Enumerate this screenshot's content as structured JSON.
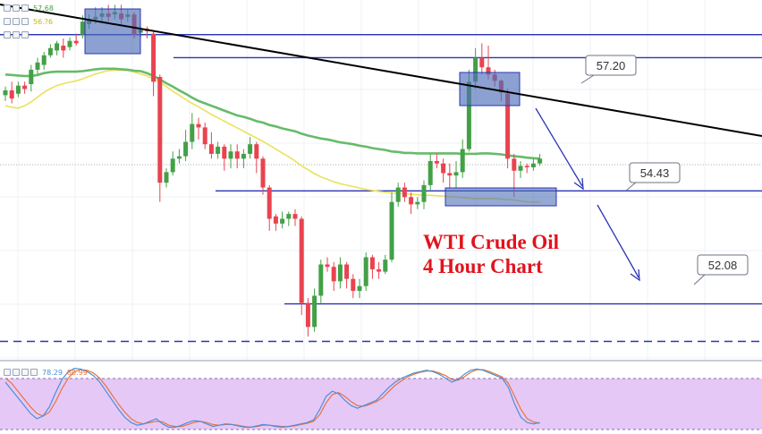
{
  "legend": {
    "row1": {
      "values": [
        "57.68"
      ],
      "colors": [
        "#43a047"
      ]
    },
    "row2": {
      "values": [
        "56.?6"
      ],
      "colors": [
        "#d4c400"
      ]
    },
    "stoch": {
      "values": [
        "78.29",
        "80.99"
      ],
      "colors": [
        "#4a90d9",
        "#e8743b"
      ]
    }
  },
  "annotation": {
    "line1": "WTI Crude Oil",
    "line2": "4 Hour Chart"
  },
  "colors": {
    "up": "#43a047",
    "down": "#e9434f",
    "level": "#2b34b5",
    "trend": "#000000",
    "ma_slow": "#66bb6a",
    "ma_fast": "#eae25a",
    "box_fill": "#4e6fb8",
    "stoch_bg": "#e6c8f7",
    "k_line": "#4a90d9",
    "d_line": "#e8743b"
  },
  "chart_data": {
    "type": "candlestick",
    "price_range": [
      50.9,
      58.4
    ],
    "levels": [
      {
        "value": 57.2,
        "label": "57.20",
        "style": "solid"
      },
      {
        "value": 54.43,
        "label": "54.43",
        "style": "solid"
      },
      {
        "value": 52.08,
        "label": "52.08",
        "style": "solid"
      },
      {
        "value": 57.68,
        "label": "",
        "style": "solid"
      },
      {
        "value": 51.3,
        "label": "",
        "style": "dashed"
      }
    ],
    "candles": [
      [
        56.42,
        56.52,
        56.6,
        56.3
      ],
      [
        56.52,
        56.35,
        56.7,
        56.25
      ],
      [
        56.45,
        56.62,
        56.7,
        56.38
      ],
      [
        56.62,
        56.55,
        56.7,
        56.45
      ],
      [
        56.65,
        56.95,
        57.05,
        56.5
      ],
      [
        56.95,
        57.1,
        57.2,
        56.85
      ],
      [
        57.05,
        57.25,
        57.32,
        56.95
      ],
      [
        57.25,
        57.4,
        57.48,
        57.2
      ],
      [
        57.35,
        57.5,
        57.55,
        57.25
      ],
      [
        57.45,
        57.35,
        57.6,
        57.2
      ],
      [
        57.42,
        57.55,
        57.62,
        57.35
      ],
      [
        57.55,
        57.5,
        57.7,
        57.45
      ],
      [
        57.68,
        57.95,
        58.08,
        57.6
      ],
      [
        57.9,
        58.0,
        58.1,
        57.8
      ],
      [
        58.0,
        58.05,
        58.25,
        57.9
      ],
      [
        58.05,
        58.12,
        58.25,
        57.95
      ],
      [
        58.12,
        58.05,
        58.3,
        57.95
      ],
      [
        58.1,
        58.15,
        58.3,
        58.0
      ],
      [
        58.12,
        58.0,
        58.3,
        57.9
      ],
      [
        58.05,
        58.1,
        58.2,
        57.95
      ],
      [
        58.1,
        57.68,
        58.15,
        57.6
      ],
      [
        57.72,
        57.78,
        57.85,
        57.62
      ],
      [
        57.8,
        57.75,
        57.85,
        57.6
      ],
      [
        57.7,
        56.7,
        57.75,
        56.4
      ],
      [
        56.8,
        54.6,
        56.85,
        54.2
      ],
      [
        54.6,
        54.82,
        54.9,
        54.5
      ],
      [
        54.82,
        55.1,
        55.25,
        54.75
      ],
      [
        55.1,
        55.15,
        55.3,
        55.0
      ],
      [
        55.15,
        55.45,
        55.7,
        55.05
      ],
      [
        55.45,
        55.82,
        56.05,
        55.3
      ],
      [
        55.82,
        55.75,
        55.95,
        55.5
      ],
      [
        55.75,
        55.4,
        55.85,
        55.3
      ],
      [
        55.4,
        55.2,
        55.65,
        55.1
      ],
      [
        55.2,
        55.35,
        55.45,
        55.1
      ],
      [
        55.35,
        55.1,
        55.4,
        54.85
      ],
      [
        55.1,
        55.25,
        55.4,
        54.9
      ],
      [
        55.25,
        55.1,
        55.4,
        54.9
      ],
      [
        55.1,
        55.2,
        55.3,
        54.9
      ],
      [
        55.2,
        55.4,
        55.55,
        55.1
      ],
      [
        55.4,
        55.1,
        55.45,
        54.8
      ],
      [
        55.1,
        54.5,
        55.15,
        54.35
      ],
      [
        54.5,
        53.85,
        54.55,
        53.6
      ],
      [
        53.9,
        53.75,
        53.95,
        53.6
      ],
      [
        53.75,
        53.85,
        54.0,
        53.65
      ],
      [
        53.85,
        53.95,
        54.0,
        53.7
      ],
      [
        53.95,
        53.85,
        54.05,
        53.7
      ],
      [
        53.85,
        52.1,
        53.9,
        51.85
      ],
      [
        52.1,
        51.6,
        52.2,
        51.4
      ],
      [
        51.6,
        52.25,
        52.4,
        51.5
      ],
      [
        52.25,
        52.9,
        53.0,
        52.1
      ],
      [
        52.9,
        52.85,
        53.05,
        52.75
      ],
      [
        52.85,
        52.55,
        52.95,
        52.35
      ],
      [
        52.55,
        52.9,
        53.05,
        52.4
      ],
      [
        52.9,
        52.6,
        52.95,
        52.4
      ],
      [
        52.6,
        52.35,
        52.7,
        52.2
      ],
      [
        52.35,
        52.45,
        52.6,
        52.2
      ],
      [
        52.45,
        53.05,
        53.15,
        52.35
      ],
      [
        53.05,
        52.8,
        53.1,
        52.6
      ],
      [
        52.8,
        52.75,
        52.95,
        52.6
      ],
      [
        52.75,
        53.0,
        53.1,
        52.7
      ],
      [
        53.0,
        54.2,
        54.4,
        52.95
      ],
      [
        54.2,
        54.5,
        54.6,
        54.1
      ],
      [
        54.5,
        54.3,
        54.6,
        54.2
      ],
      [
        54.3,
        54.15,
        54.4,
        53.95
      ],
      [
        54.15,
        54.2,
        54.3,
        54.05
      ],
      [
        54.2,
        54.55,
        54.65,
        54.05
      ],
      [
        54.55,
        55.05,
        55.2,
        54.45
      ],
      [
        55.05,
        55.0,
        55.2,
        54.9
      ],
      [
        55.0,
        54.8,
        55.1,
        54.6
      ],
      [
        54.8,
        54.75,
        55.0,
        54.5
      ],
      [
        54.75,
        54.82,
        55.05,
        54.5
      ],
      [
        54.82,
        55.3,
        55.5,
        54.7
      ],
      [
        55.3,
        56.7,
        56.95,
        55.25
      ],
      [
        56.7,
        57.2,
        57.4,
        56.55
      ],
      [
        57.2,
        57.0,
        57.5,
        56.85
      ],
      [
        57.0,
        56.85,
        57.45,
        56.75
      ],
      [
        56.85,
        56.72,
        56.95,
        56.6
      ],
      [
        56.72,
        56.48,
        56.75,
        56.3
      ],
      [
        56.45,
        55.1,
        56.55,
        54.9
      ],
      [
        55.1,
        54.85,
        55.2,
        54.3
      ],
      [
        54.85,
        54.95,
        55.05,
        54.7
      ],
      [
        54.95,
        54.92,
        55.0,
        54.8
      ],
      [
        54.92,
        55.0,
        55.1,
        54.85
      ],
      [
        55.0,
        55.1,
        55.2,
        54.95
      ]
    ],
    "ma_slow": [
      [
        0,
        56.85
      ],
      [
        1,
        56.84
      ],
      [
        2,
        56.83
      ],
      [
        3,
        56.82
      ],
      [
        4,
        56.82
      ],
      [
        5,
        56.84
      ],
      [
        6,
        56.88
      ],
      [
        7,
        56.9
      ],
      [
        8,
        56.91
      ],
      [
        9,
        56.91
      ],
      [
        10,
        56.91
      ],
      [
        11,
        56.91
      ],
      [
        12,
        56.92
      ],
      [
        13,
        56.94
      ],
      [
        14,
        56.96
      ],
      [
        15,
        56.97
      ],
      [
        16,
        56.97
      ],
      [
        17,
        56.97
      ],
      [
        18,
        56.96
      ],
      [
        19,
        56.95
      ],
      [
        20,
        56.93
      ],
      [
        21,
        56.92
      ],
      [
        22,
        56.88
      ],
      [
        23,
        56.82
      ],
      [
        24,
        56.75
      ],
      [
        25,
        56.67
      ],
      [
        26,
        56.6
      ],
      [
        27,
        56.52
      ],
      [
        28,
        56.45
      ],
      [
        29,
        56.37
      ],
      [
        30,
        56.3
      ],
      [
        31,
        56.25
      ],
      [
        32,
        56.2
      ],
      [
        33,
        56.15
      ],
      [
        34,
        56.1
      ],
      [
        35,
        56.05
      ],
      [
        36,
        56.0
      ],
      [
        37,
        55.97
      ],
      [
        38,
        55.93
      ],
      [
        39,
        55.88
      ],
      [
        40,
        55.85
      ],
      [
        41,
        55.8
      ],
      [
        42,
        55.77
      ],
      [
        43,
        55.73
      ],
      [
        44,
        55.7
      ],
      [
        45,
        55.67
      ],
      [
        46,
        55.62
      ],
      [
        47,
        55.58
      ],
      [
        48,
        55.55
      ],
      [
        49,
        55.52
      ],
      [
        50,
        55.5
      ],
      [
        51,
        55.47
      ],
      [
        52,
        55.44
      ],
      [
        53,
        55.42
      ],
      [
        54,
        55.4
      ],
      [
        55,
        55.37
      ],
      [
        56,
        55.35
      ],
      [
        57,
        55.32
      ],
      [
        58,
        55.3
      ],
      [
        59,
        55.28
      ],
      [
        60,
        55.25
      ],
      [
        61,
        55.24
      ],
      [
        62,
        55.22
      ],
      [
        63,
        55.22
      ],
      [
        64,
        55.21
      ],
      [
        65,
        55.21
      ],
      [
        66,
        55.21
      ],
      [
        67,
        55.21
      ],
      [
        68,
        55.21
      ],
      [
        69,
        55.21
      ],
      [
        70,
        55.21
      ],
      [
        71,
        55.2
      ],
      [
        72,
        55.2
      ],
      [
        73,
        55.2
      ],
      [
        74,
        55.21
      ],
      [
        75,
        55.21
      ],
      [
        76,
        55.2
      ],
      [
        77,
        55.19
      ],
      [
        78,
        55.17
      ],
      [
        79,
        55.15
      ],
      [
        80,
        55.14
      ],
      [
        81,
        55.12
      ],
      [
        82,
        55.11
      ],
      [
        83,
        55.1
      ]
    ],
    "ma_fast": [
      [
        0,
        56.2
      ],
      [
        1,
        56.17
      ],
      [
        2,
        56.15
      ],
      [
        3,
        56.2
      ],
      [
        4,
        56.28
      ],
      [
        5,
        56.38
      ],
      [
        6,
        56.48
      ],
      [
        7,
        56.56
      ],
      [
        8,
        56.62
      ],
      [
        9,
        56.66
      ],
      [
        10,
        56.69
      ],
      [
        11,
        56.72
      ],
      [
        12,
        56.76
      ],
      [
        13,
        56.81
      ],
      [
        14,
        56.86
      ],
      [
        15,
        56.9
      ],
      [
        16,
        56.93
      ],
      [
        17,
        56.94
      ],
      [
        18,
        56.94
      ],
      [
        19,
        56.93
      ],
      [
        20,
        56.9
      ],
      [
        21,
        56.86
      ],
      [
        22,
        56.82
      ],
      [
        23,
        56.76
      ],
      [
        24,
        56.69
      ],
      [
        25,
        56.6
      ],
      [
        26,
        56.5
      ],
      [
        27,
        56.42
      ],
      [
        28,
        56.33
      ],
      [
        29,
        56.25
      ],
      [
        30,
        56.18
      ],
      [
        31,
        56.1
      ],
      [
        32,
        56.02
      ],
      [
        33,
        55.95
      ],
      [
        34,
        55.88
      ],
      [
        35,
        55.81
      ],
      [
        36,
        55.74
      ],
      [
        37,
        55.67
      ],
      [
        38,
        55.6
      ],
      [
        39,
        55.53
      ],
      [
        40,
        55.46
      ],
      [
        41,
        55.38
      ],
      [
        42,
        55.3
      ],
      [
        43,
        55.22
      ],
      [
        44,
        55.14
      ],
      [
        45,
        55.05
      ],
      [
        46,
        54.95
      ],
      [
        47,
        54.87
      ],
      [
        48,
        54.79
      ],
      [
        49,
        54.72
      ],
      [
        50,
        54.67
      ],
      [
        51,
        54.62
      ],
      [
        52,
        54.58
      ],
      [
        53,
        54.55
      ],
      [
        54,
        54.52
      ],
      [
        55,
        54.49
      ],
      [
        56,
        54.46
      ],
      [
        57,
        54.44
      ],
      [
        58,
        54.42
      ],
      [
        59,
        54.4
      ],
      [
        60,
        54.39
      ],
      [
        61,
        54.38
      ],
      [
        62,
        54.37
      ],
      [
        63,
        54.36
      ],
      [
        64,
        54.35
      ],
      [
        65,
        54.34
      ],
      [
        66,
        54.34
      ],
      [
        67,
        54.33
      ],
      [
        68,
        54.32
      ],
      [
        69,
        54.31
      ],
      [
        70,
        54.3
      ],
      [
        71,
        54.29
      ],
      [
        72,
        54.28
      ],
      [
        73,
        54.27
      ],
      [
        74,
        54.27
      ],
      [
        75,
        54.27
      ],
      [
        76,
        54.27
      ],
      [
        77,
        54.26
      ],
      [
        78,
        54.25
      ],
      [
        79,
        54.24
      ],
      [
        80,
        54.22
      ],
      [
        81,
        54.2
      ],
      [
        82,
        54.2
      ],
      [
        83,
        54.2
      ]
    ],
    "stochastic": {
      "range": [
        0,
        100
      ],
      "k": [
        74,
        62,
        50,
        38,
        26,
        18,
        22,
        36,
        58,
        78,
        90,
        95,
        94,
        90,
        84,
        74,
        60,
        46,
        32,
        20,
        12,
        8,
        10,
        14,
        18,
        10,
        5,
        5,
        8,
        12,
        15,
        14,
        10,
        6,
        8,
        10,
        9,
        7,
        5,
        5,
        7,
        9,
        8,
        6,
        5,
        6,
        8,
        10,
        12,
        16,
        32,
        52,
        60,
        56,
        46,
        38,
        34,
        38,
        42,
        46,
        56,
        66,
        74,
        80,
        84,
        88,
        90,
        92,
        90,
        86,
        80,
        74,
        78,
        86,
        92,
        94,
        92,
        88,
        84,
        80,
        66,
        40,
        20,
        12,
        10,
        12
      ],
      "d": [
        80,
        72,
        60,
        48,
        36,
        26,
        22,
        28,
        44,
        64,
        80,
        90,
        93,
        92,
        88,
        80,
        68,
        54,
        40,
        28,
        18,
        12,
        10,
        12,
        14,
        13,
        8,
        6,
        6,
        9,
        12,
        14,
        12,
        9,
        8,
        9,
        9,
        8,
        6,
        5,
        6,
        8,
        8,
        7,
        6,
        6,
        7,
        9,
        11,
        14,
        24,
        42,
        55,
        58,
        52,
        44,
        38,
        37,
        40,
        44,
        50,
        60,
        69,
        76,
        82,
        86,
        89,
        91,
        91,
        88,
        84,
        78,
        77,
        82,
        89,
        93,
        93,
        90,
        86,
        82,
        72,
        52,
        32,
        18,
        13,
        11
      ]
    }
  }
}
